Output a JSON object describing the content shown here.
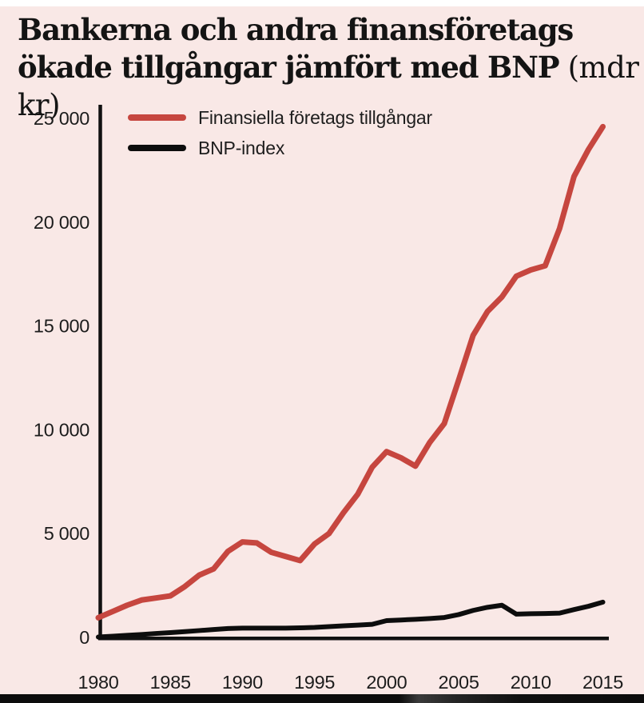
{
  "title": {
    "line1": "Bankerna och andra finansföretags",
    "line2_bold": "ökade tillgångar jämfört med BNP",
    "line2_unit": " (mdr kr)"
  },
  "colors": {
    "panel_background": "#f9e8e6",
    "series_red": "#c6463f",
    "series_black": "#0d0d0d",
    "axis": "#111111",
    "bottom_strip": "#0c0c0c"
  },
  "chart_data": {
    "type": "line",
    "title": "Bankerna och andra finansföretags ökade tillgångar jämfört med BNP (mdr kr)",
    "xlabel": "",
    "ylabel": "",
    "unit": "mdr kr",
    "grid": false,
    "legend_position": "top-left-inside",
    "xlim": [
      1980,
      2015
    ],
    "ylim": [
      0,
      25000
    ],
    "x": [
      1980,
      1981,
      1982,
      1983,
      1984,
      1985,
      1986,
      1987,
      1988,
      1989,
      1990,
      1991,
      1992,
      1993,
      1994,
      1995,
      1996,
      1997,
      1998,
      1999,
      2000,
      2001,
      2002,
      2003,
      2004,
      2005,
      2006,
      2007,
      2008,
      2009,
      2010,
      2011,
      2012,
      2013,
      2014,
      2015
    ],
    "x_ticks": [
      1980,
      1985,
      1990,
      1995,
      2000,
      2005,
      2010,
      2015
    ],
    "x_tick_labels": [
      "1980",
      "1985",
      "1990",
      "1995",
      "2000",
      "2005",
      "2010",
      "2015"
    ],
    "y_ticks": [
      {
        "value": 0,
        "label": "0"
      },
      {
        "value": 5000,
        "label": "5 000"
      },
      {
        "value": 10000,
        "label": "10 000"
      },
      {
        "value": 15000,
        "label": "15 000"
      },
      {
        "value": 20000,
        "label": "20 000"
      },
      {
        "value": 25000,
        "label": "25 000"
      }
    ],
    "series": [
      {
        "name": "Finansiella företags tillgångar",
        "color": "#c6463f",
        "values": [
          950,
          1250,
          1550,
          1800,
          1900,
          2000,
          2450,
          3000,
          3300,
          4150,
          4600,
          4550,
          4100,
          3900,
          3700,
          4500,
          5000,
          6000,
          6900,
          8200,
          8950,
          8650,
          8250,
          9400,
          10300,
          12400,
          14550,
          15700,
          16400,
          17400,
          17700,
          17900,
          19700,
          22200,
          23500,
          24600
        ]
      },
      {
        "name": "BNP-index",
        "color": "#0d0d0d",
        "values": [
          20,
          60,
          100,
          140,
          190,
          230,
          280,
          330,
          380,
          430,
          450,
          450,
          450,
          450,
          460,
          480,
          520,
          560,
          590,
          630,
          810,
          840,
          870,
          910,
          960,
          1100,
          1300,
          1450,
          1550,
          1120,
          1140,
          1150,
          1170,
          1340,
          1500,
          1700
        ]
      }
    ]
  }
}
